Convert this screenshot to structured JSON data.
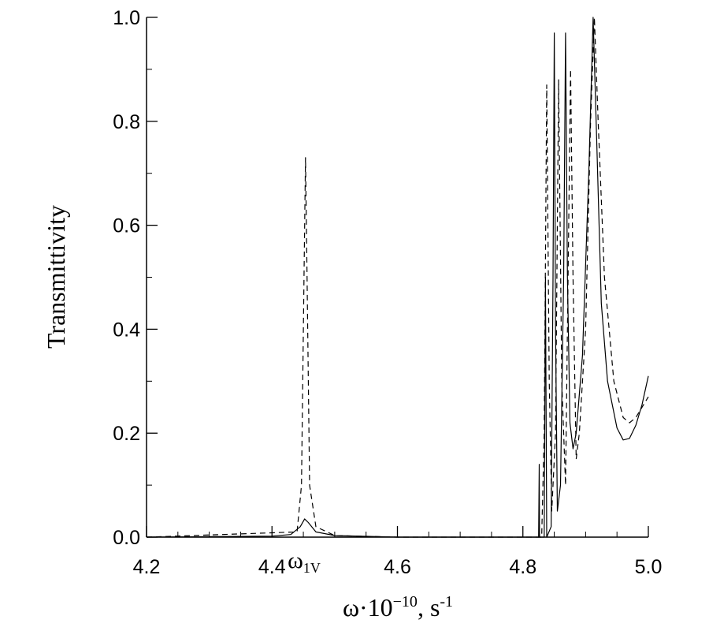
{
  "chart_data": {
    "type": "line",
    "xlabel": "ω·10",
    "xlabel_exponent": "−10",
    "xlabel_unit": ", s",
    "xlabel_unit_exponent": "-1",
    "ylabel": "Transmittivity",
    "annotation": {
      "text": "ω",
      "subscript": "1V",
      "x": 4.45
    },
    "xlim": [
      4.2,
      5.0
    ],
    "ylim": [
      0.0,
      1.0
    ],
    "x_ticks": [
      "4.2",
      "4.4",
      "4.6",
      "4.8",
      "5.0"
    ],
    "y_ticks": [
      "0.0",
      "0.2",
      "0.4",
      "0.6",
      "0.8",
      "1.0"
    ],
    "x_minor_step": 0.05,
    "y_minor_step": 0.1,
    "grid": false,
    "series": [
      {
        "style": "solid",
        "points": [
          [
            4.2,
            0.0
          ],
          [
            4.4,
            0.002
          ],
          [
            4.43,
            0.005
          ],
          [
            4.445,
            0.02
          ],
          [
            4.452,
            0.035
          ],
          [
            4.458,
            0.028
          ],
          [
            4.47,
            0.01
          ],
          [
            4.5,
            0.003
          ],
          [
            4.55,
            0.0015
          ],
          [
            4.6,
            0.0
          ],
          [
            4.825,
            0.0
          ],
          [
            4.826,
            0.14
          ],
          [
            4.8265,
            0.0
          ],
          [
            4.834,
            0.0
          ],
          [
            4.836,
            0.5
          ],
          [
            4.838,
            0.0
          ],
          [
            4.845,
            0.02
          ],
          [
            4.848,
            0.5
          ],
          [
            4.85,
            0.97
          ],
          [
            4.852,
            0.4
          ],
          [
            4.855,
            0.05
          ],
          [
            4.86,
            0.1
          ],
          [
            4.865,
            0.5
          ],
          [
            4.868,
            0.97
          ],
          [
            4.871,
            0.5
          ],
          [
            4.875,
            0.22
          ],
          [
            4.88,
            0.17
          ],
          [
            4.885,
            0.2
          ],
          [
            4.895,
            0.35
          ],
          [
            4.905,
            0.7
          ],
          [
            4.912,
            1.0
          ],
          [
            4.918,
            0.75
          ],
          [
            4.925,
            0.45
          ],
          [
            4.935,
            0.3
          ],
          [
            4.95,
            0.21
          ],
          [
            4.96,
            0.187
          ],
          [
            4.97,
            0.19
          ],
          [
            4.98,
            0.215
          ],
          [
            4.99,
            0.255
          ],
          [
            5.0,
            0.31
          ]
        ]
      },
      {
        "style": "dashed",
        "points": [
          [
            4.2,
            0.0
          ],
          [
            4.44,
            0.01
          ],
          [
            4.447,
            0.1
          ],
          [
            4.451,
            0.5
          ],
          [
            4.4535,
            0.73
          ],
          [
            4.456,
            0.5
          ],
          [
            4.46,
            0.1
          ],
          [
            4.47,
            0.02
          ],
          [
            4.5,
            0.003
          ],
          [
            4.6,
            0.0
          ],
          [
            4.83,
            0.0
          ],
          [
            4.834,
            0.2
          ],
          [
            4.838,
            0.87
          ],
          [
            4.842,
            0.3
          ],
          [
            4.846,
            0.05
          ],
          [
            4.852,
            0.2
          ],
          [
            4.857,
            0.88
          ],
          [
            4.862,
            0.3
          ],
          [
            4.868,
            0.1
          ],
          [
            4.872,
            0.5
          ],
          [
            4.876,
            0.9
          ],
          [
            4.88,
            0.5
          ],
          [
            4.885,
            0.15
          ],
          [
            4.89,
            0.2
          ],
          [
            4.9,
            0.4
          ],
          [
            4.908,
            0.8
          ],
          [
            4.914,
            1.0
          ],
          [
            4.92,
            0.8
          ],
          [
            4.93,
            0.5
          ],
          [
            4.945,
            0.3
          ],
          [
            4.96,
            0.23
          ],
          [
            4.97,
            0.22
          ],
          [
            4.98,
            0.23
          ],
          [
            4.99,
            0.25
          ],
          [
            5.0,
            0.27
          ]
        ]
      }
    ]
  }
}
